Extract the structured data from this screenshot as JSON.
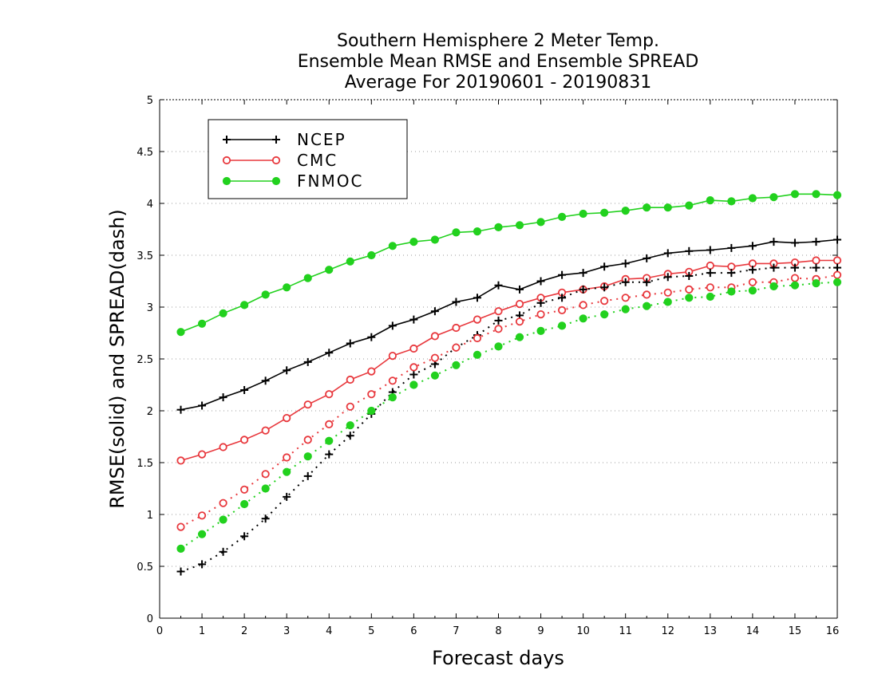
{
  "chart_data": {
    "type": "line",
    "title": [
      "Southern Hemisphere 2 Meter Temp.",
      "Ensemble Mean RMSE and Ensemble SPREAD",
      "Average For 20190601 - 20190831"
    ],
    "xlabel": "Forecast days",
    "ylabel": "RMSE(solid) and SPREAD(dash)",
    "xlim": [
      0,
      16
    ],
    "ylim": [
      0,
      5
    ],
    "xticks": [
      "0",
      "1",
      "2",
      "3",
      "4",
      "5",
      "6",
      "7",
      "8",
      "9",
      "10",
      "11",
      "12",
      "13",
      "14",
      "15",
      "16"
    ],
    "yticks": [
      "0",
      "0.5",
      "1",
      "1.5",
      "2",
      "2.5",
      "3",
      "3.5",
      "4",
      "4.5",
      "5"
    ],
    "grid": true,
    "legend_position": "top-left",
    "x": [
      0.5,
      1,
      1.5,
      2,
      2.5,
      3,
      3.5,
      4,
      4.5,
      5,
      5.5,
      6,
      6.5,
      7,
      7.5,
      8,
      8.5,
      9,
      9.5,
      10,
      10.5,
      11,
      11.5,
      12,
      12.5,
      13,
      13.5,
      14,
      14.5,
      15,
      15.5,
      16
    ],
    "series": [
      {
        "name": "NCEP",
        "style": "solid",
        "marker": "plus",
        "color": "#000000",
        "values": [
          2.01,
          2.05,
          2.13,
          2.2,
          2.29,
          2.39,
          2.47,
          2.56,
          2.65,
          2.71,
          2.82,
          2.88,
          2.96,
          3.05,
          3.09,
          3.21,
          3.17,
          3.25,
          3.31,
          3.33,
          3.39,
          3.42,
          3.47,
          3.52,
          3.54,
          3.55,
          3.57,
          3.59,
          3.63,
          3.62,
          3.63,
          3.65
        ]
      },
      {
        "name": "CMC",
        "style": "solid",
        "marker": "open-circle",
        "color": "#e8383d",
        "values": [
          1.52,
          1.58,
          1.65,
          1.72,
          1.81,
          1.93,
          2.06,
          2.16,
          2.3,
          2.38,
          2.53,
          2.6,
          2.72,
          2.8,
          2.88,
          2.96,
          3.03,
          3.09,
          3.14,
          3.17,
          3.2,
          3.27,
          3.28,
          3.32,
          3.34,
          3.4,
          3.39,
          3.42,
          3.42,
          3.43,
          3.45,
          3.45
        ]
      },
      {
        "name": "FNMOC",
        "style": "solid",
        "marker": "filled-circle",
        "color": "#22d11e",
        "values": [
          2.76,
          2.84,
          2.94,
          3.02,
          3.12,
          3.19,
          3.28,
          3.36,
          3.44,
          3.5,
          3.59,
          3.63,
          3.65,
          3.72,
          3.73,
          3.77,
          3.79,
          3.82,
          3.87,
          3.9,
          3.91,
          3.93,
          3.96,
          3.96,
          3.98,
          4.03,
          4.02,
          4.05,
          4.06,
          4.09,
          4.09,
          4.08
        ]
      },
      {
        "name": "NCEP",
        "style": "dash",
        "marker": "plus",
        "color": "#000000",
        "values": [
          0.45,
          0.52,
          0.64,
          0.79,
          0.96,
          1.17,
          1.37,
          1.58,
          1.76,
          1.97,
          2.18,
          2.35,
          2.45,
          2.61,
          2.73,
          2.87,
          2.92,
          3.04,
          3.09,
          3.17,
          3.19,
          3.24,
          3.24,
          3.29,
          3.3,
          3.33,
          3.33,
          3.36,
          3.38,
          3.38,
          3.38,
          3.38
        ]
      },
      {
        "name": "CMC",
        "style": "dash",
        "marker": "open-circle",
        "color": "#e8383d",
        "values": [
          0.88,
          0.99,
          1.11,
          1.24,
          1.39,
          1.55,
          1.72,
          1.87,
          2.04,
          2.16,
          2.29,
          2.42,
          2.51,
          2.61,
          2.7,
          2.79,
          2.86,
          2.93,
          2.97,
          3.02,
          3.06,
          3.09,
          3.12,
          3.14,
          3.17,
          3.19,
          3.19,
          3.24,
          3.24,
          3.28,
          3.27,
          3.31
        ]
      },
      {
        "name": "FNMOC",
        "style": "dash",
        "marker": "filled-circle",
        "color": "#22d11e",
        "values": [
          0.67,
          0.81,
          0.95,
          1.1,
          1.25,
          1.41,
          1.56,
          1.71,
          1.86,
          2.0,
          2.13,
          2.25,
          2.34,
          2.44,
          2.54,
          2.62,
          2.71,
          2.77,
          2.82,
          2.89,
          2.93,
          2.98,
          3.01,
          3.05,
          3.09,
          3.1,
          3.15,
          3.16,
          3.2,
          3.21,
          3.23,
          3.24
        ]
      }
    ],
    "legend": [
      {
        "name": "NCEP",
        "marker": "plus",
        "color": "#000000"
      },
      {
        "name": "CMC",
        "marker": "open-circle",
        "color": "#e8383d"
      },
      {
        "name": "FNMOC",
        "marker": "filled-circle",
        "color": "#22d11e"
      }
    ]
  }
}
